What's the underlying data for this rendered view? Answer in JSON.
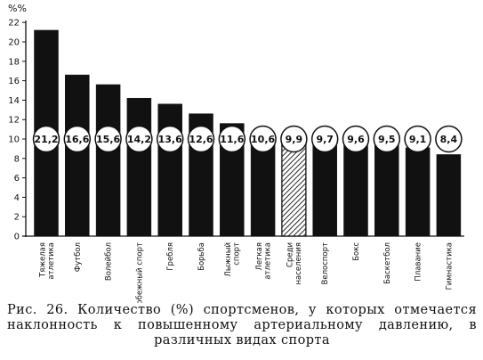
{
  "chart_data": {
    "type": "bar",
    "ylabel": "%%",
    "ylim": [
      0,
      22
    ],
    "yticks": [
      0,
      2,
      4,
      6,
      8,
      10,
      12,
      14,
      16,
      18,
      20,
      22
    ],
    "grid": false,
    "legend": "none",
    "categories": [
      [
        "Тяжелая",
        "атлетика"
      ],
      [
        "Футбол"
      ],
      [
        "Волейбол"
      ],
      [
        "Конькобежный спорт"
      ],
      [
        "Гребля"
      ],
      [
        "Борьба"
      ],
      [
        "Лыжный",
        "спорт"
      ],
      [
        "Легкая",
        "атлетика"
      ],
      [
        "Среди",
        "населения"
      ],
      [
        "Велоспорт"
      ],
      [
        "Бокс"
      ],
      [
        "Баскетбол"
      ],
      [
        "Плавание"
      ],
      [
        "Гимнастика"
      ]
    ],
    "values": [
      21.2,
      16.6,
      15.6,
      14.2,
      13.6,
      12.6,
      11.6,
      10.6,
      9.9,
      9.7,
      9.6,
      9.5,
      9.1,
      8.4
    ],
    "value_labels": [
      "21,2",
      "16,6",
      "15,6",
      "14,2",
      "13,6",
      "12,6",
      "11,6",
      "10,6",
      "9,9",
      "9,7",
      "9,6",
      "9,5",
      "9,1",
      "8,4"
    ],
    "highlight_index": 8,
    "colors": {
      "bar": "#111111",
      "highlight_hatch": "#111111",
      "circle_fill": "#ffffff"
    }
  },
  "caption": "Рис. 26. Количество (%) спортсменов, у которых отмечается наклонность к повышенному артериальному давлению, в различных видах спорта"
}
